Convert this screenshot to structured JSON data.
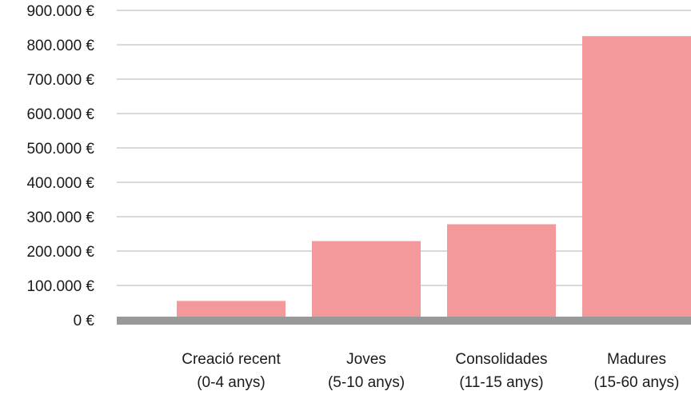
{
  "chart_data": {
    "type": "bar",
    "categories": [
      [
        "Creació recent",
        "(0-4 anys)"
      ],
      [
        "Joves",
        "(5-10 anys)"
      ],
      [
        "Consolidades",
        "(11-15 anys)"
      ],
      [
        "Madures",
        "(15-60 anys)"
      ]
    ],
    "values": [
      55000,
      229000,
      278000,
      825000
    ],
    "ylim": [
      0,
      900000
    ],
    "yticks": [
      0,
      100000,
      200000,
      300000,
      400000,
      500000,
      600000,
      700000,
      800000,
      900000
    ],
    "ytick_labels": [
      "0 €",
      "100.000 €",
      "200.000 €",
      "300.000 €",
      "400.000 €",
      "500.000 €",
      "600.000 €",
      "700.000 €",
      "800.000 €",
      "900.000 €"
    ],
    "grid": true,
    "colors": {
      "bar": "#f4999b",
      "grid": "#b3b3b3",
      "baseline": "#999999"
    }
  }
}
